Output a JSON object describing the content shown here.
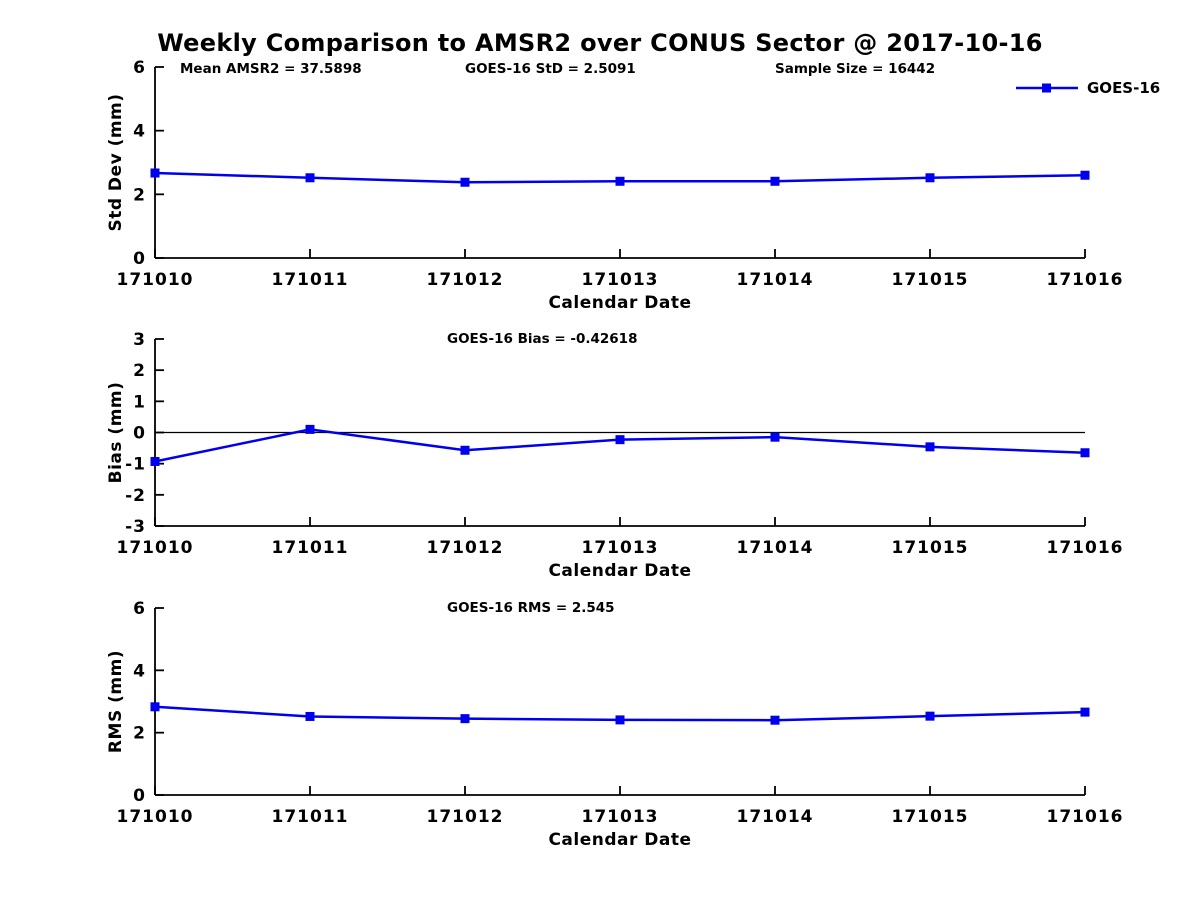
{
  "figure": {
    "title": "Weekly Comparison to AMSR2 over CONUS Sector @ 2017-10-16"
  },
  "header_stats": {
    "mean_amsr2": "Mean AMSR2 = 37.5898",
    "goes_std": "GOES-16 StD = 2.5091",
    "sample_size": "Sample Size = 16442"
  },
  "legend": {
    "position": "top-right",
    "entries": [
      {
        "label": "GOES-16",
        "marker": "filled-square",
        "line": "solid"
      }
    ]
  },
  "colors": {
    "series_line": "#0000ee",
    "axis": "#000000",
    "ref_line": "#000000",
    "background": "#ffffff",
    "text": "#000000"
  },
  "chart_data": [
    {
      "type": "line",
      "name": "stddev",
      "title": "",
      "ylabel": "Std Dev (mm)",
      "xlabel": "Calendar Date",
      "categories": [
        "171010",
        "171011",
        "171012",
        "171013",
        "171014",
        "171015",
        "171016"
      ],
      "series": [
        {
          "name": "GOES-16",
          "values": [
            2.67,
            2.52,
            2.38,
            2.41,
            2.41,
            2.52,
            2.6
          ]
        }
      ],
      "ylim": [
        0,
        6
      ],
      "yticks": [
        0,
        2,
        4,
        6
      ],
      "ref_line_y": null,
      "grid": false,
      "annotations": [
        "Mean AMSR2 = 37.5898",
        "GOES-16 StD = 2.5091",
        "Sample Size = 16442"
      ]
    },
    {
      "type": "line",
      "name": "bias",
      "title": "GOES-16 Bias  = -0.42618",
      "ylabel": "Bias (mm)",
      "xlabel": "Calendar Date",
      "categories": [
        "171010",
        "171011",
        "171012",
        "171013",
        "171014",
        "171015",
        "171016"
      ],
      "series": [
        {
          "name": "GOES-16",
          "values": [
            -0.93,
            0.1,
            -0.57,
            -0.23,
            -0.15,
            -0.46,
            -0.65
          ]
        }
      ],
      "ylim": [
        -3,
        3
      ],
      "yticks": [
        -3,
        -2,
        -1,
        0,
        1,
        2,
        3
      ],
      "ref_line_y": 0,
      "grid": false,
      "annotations": []
    },
    {
      "type": "line",
      "name": "rms",
      "title": "GOES-16 RMS = 2.545",
      "ylabel": "RMS (mm)",
      "xlabel": "Calendar Date",
      "categories": [
        "171010",
        "171011",
        "171012",
        "171013",
        "171014",
        "171015",
        "171016"
      ],
      "series": [
        {
          "name": "GOES-16",
          "values": [
            2.83,
            2.52,
            2.45,
            2.41,
            2.4,
            2.53,
            2.66
          ]
        }
      ],
      "ylim": [
        0,
        6
      ],
      "yticks": [
        0,
        2,
        4,
        6
      ],
      "ref_line_y": null,
      "grid": false,
      "annotations": []
    }
  ]
}
